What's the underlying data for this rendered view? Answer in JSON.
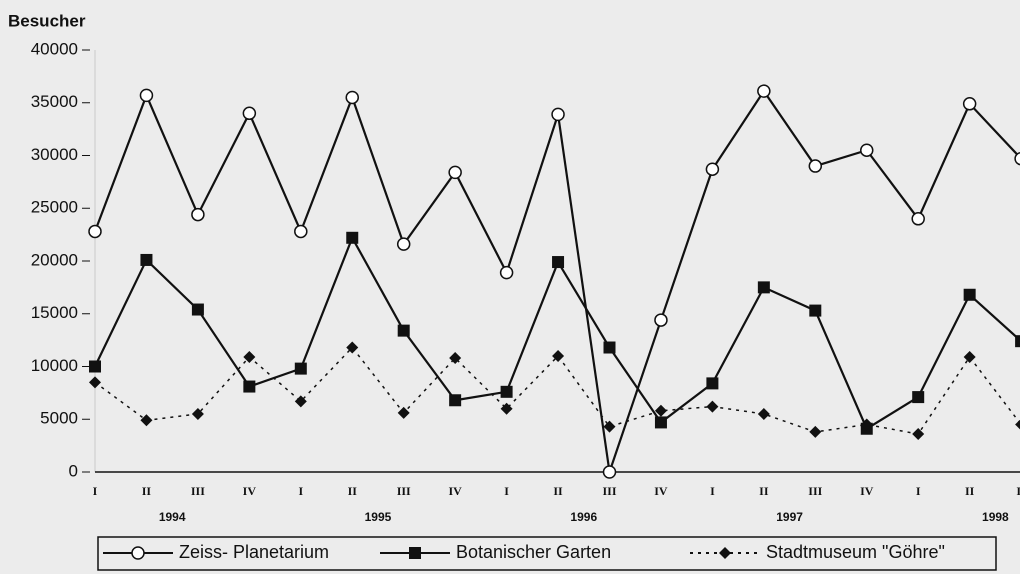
{
  "chart_data": {
    "type": "line",
    "y_label": "Besucher",
    "categories": [
      "I",
      "II",
      "III",
      "IV",
      "I",
      "II",
      "III",
      "IV",
      "I",
      "II",
      "III",
      "IV",
      "I",
      "II",
      "III",
      "IV",
      "I",
      "II",
      "II"
    ],
    "years": [
      "1994",
      "1995",
      "1996",
      "1997",
      "1998"
    ],
    "ylim": [
      0,
      40000
    ],
    "yticks": [
      0,
      5000,
      10000,
      15000,
      20000,
      25000,
      30000,
      35000,
      40000
    ],
    "series": [
      {
        "name": "Zeiss- Planetarium",
        "color": "#111111",
        "marker": "circle",
        "dash": "solid",
        "values": [
          22800,
          35700,
          24400,
          34000,
          22800,
          35500,
          21600,
          28400,
          18900,
          33900,
          0,
          14400,
          28700,
          36100,
          29000,
          30500,
          24000,
          34900,
          29700
        ]
      },
      {
        "name": "Botanischer Garten",
        "color": "#111111",
        "marker": "square",
        "dash": "solid",
        "values": [
          10000,
          20100,
          15400,
          8100,
          9800,
          22200,
          13400,
          6800,
          7600,
          19900,
          11800,
          4700,
          8400,
          17500,
          15300,
          4100,
          7100,
          16800,
          12400
        ]
      },
      {
        "name": "Stadtmuseum \"Göhre\"",
        "color": "#111111",
        "marker": "diamond",
        "dash": "dotted",
        "values": [
          8500,
          4900,
          5500,
          10900,
          6700,
          11800,
          5600,
          10800,
          6000,
          11000,
          4300,
          5800,
          6200,
          5500,
          3800,
          4500,
          3600,
          10900,
          4500
        ]
      }
    ],
    "legend": "bottom"
  }
}
